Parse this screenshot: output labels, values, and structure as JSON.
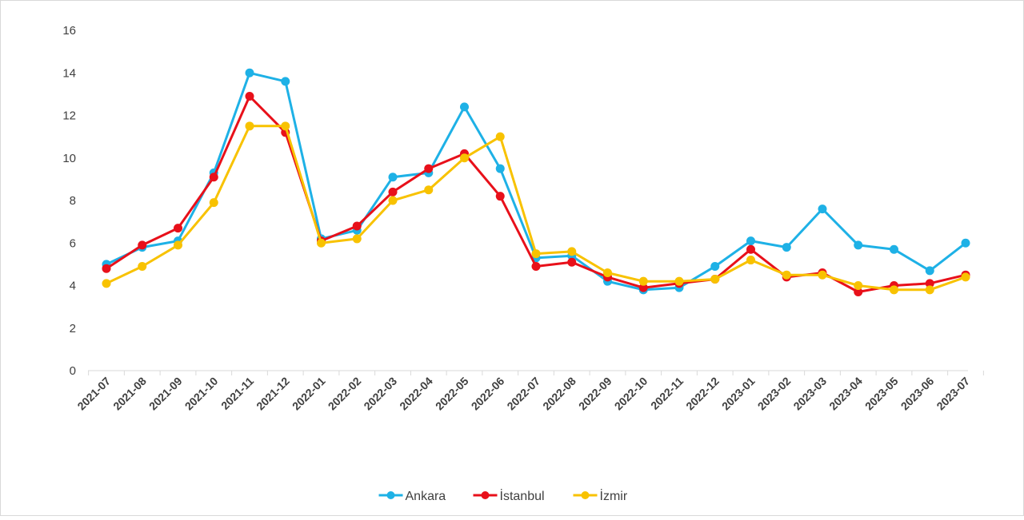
{
  "chart_data": {
    "type": "line",
    "title": "",
    "xlabel": "",
    "ylabel": "",
    "ylim": [
      0,
      16
    ],
    "yticks": [
      0,
      2,
      4,
      6,
      8,
      10,
      12,
      14,
      16
    ],
    "grid": false,
    "legend_position": "bottom",
    "categories": [
      "2021-07",
      "2021-08",
      "2021-09",
      "2021-10",
      "2021-11",
      "2021-12",
      "2022-01",
      "2022-02",
      "2022-03",
      "2022-04",
      "2022-05",
      "2022-06",
      "2022-07",
      "2022-08",
      "2022-09",
      "2022-10",
      "2022-11",
      "2022-12",
      "2023-01",
      "2023-02",
      "2023-03",
      "2023-04",
      "2023-05",
      "2023-06",
      "2023-07"
    ],
    "series": [
      {
        "name": "Ankara",
        "color": "#1eb1e6",
        "values": [
          5.0,
          5.8,
          6.1,
          9.3,
          14.0,
          13.6,
          6.2,
          6.6,
          9.1,
          9.3,
          12.4,
          9.5,
          5.3,
          5.4,
          4.2,
          3.8,
          3.9,
          4.9,
          6.1,
          5.8,
          7.6,
          5.9,
          5.7,
          4.7,
          6.0
        ]
      },
      {
        "name": "İstanbul",
        "color": "#e8101a",
        "values": [
          4.8,
          5.9,
          6.7,
          9.1,
          12.9,
          11.2,
          6.1,
          6.8,
          8.4,
          9.5,
          10.2,
          8.2,
          4.9,
          5.1,
          4.4,
          3.9,
          4.1,
          4.3,
          5.7,
          4.4,
          4.6,
          3.7,
          4.0,
          4.1,
          4.5
        ]
      },
      {
        "name": "İzmir",
        "color": "#f8c200",
        "values": [
          4.1,
          4.9,
          5.9,
          7.9,
          11.5,
          11.5,
          6.0,
          6.2,
          8.0,
          8.5,
          10.0,
          11.0,
          5.5,
          5.6,
          4.6,
          4.2,
          4.2,
          4.3,
          5.2,
          4.5,
          4.5,
          4.0,
          3.8,
          3.8,
          4.4
        ]
      }
    ]
  }
}
